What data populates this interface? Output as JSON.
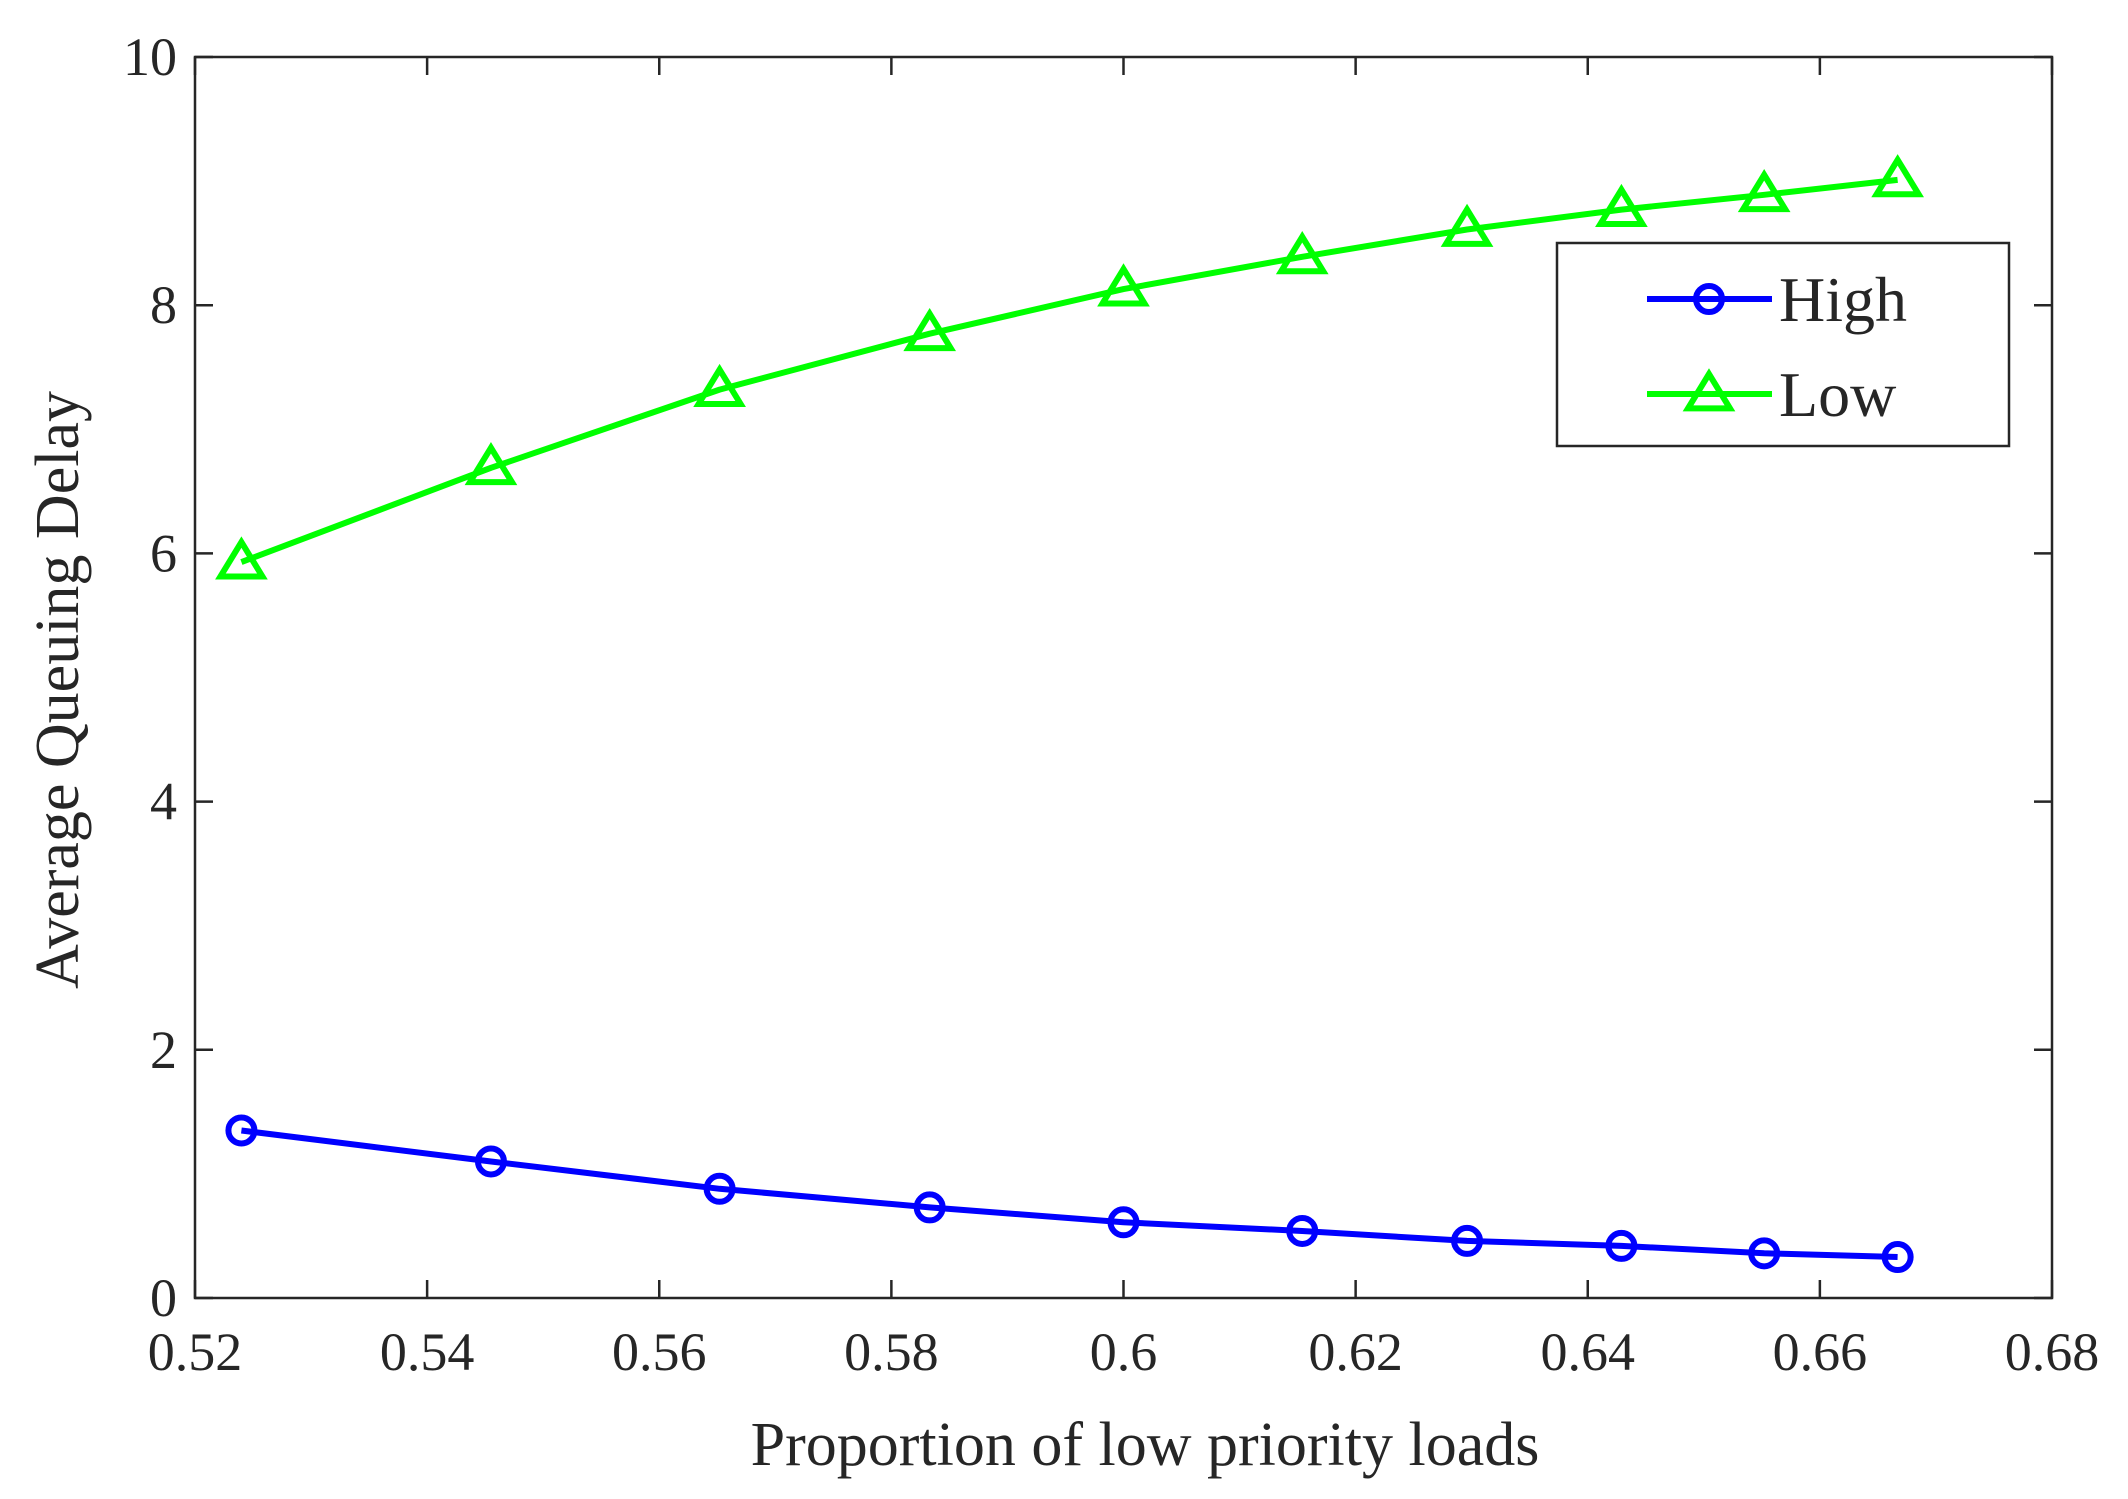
{
  "chart_data": {
    "type": "line",
    "title": "",
    "xlabel": "Proportion of low priority loads",
    "ylabel": "Average Queuing Delay",
    "xlim": [
      0.52,
      0.68
    ],
    "ylim": [
      0,
      10
    ],
    "xticks": [
      0.52,
      0.54,
      0.56,
      0.58,
      0.6,
      0.62,
      0.64,
      0.66,
      0.68
    ],
    "xtick_labels": [
      "0.52",
      "0.54",
      "0.56",
      "0.58",
      "0.6",
      "0.62",
      "0.64",
      "0.66",
      "0.68"
    ],
    "yticks": [
      0,
      2,
      4,
      6,
      8,
      10
    ],
    "ytick_labels": [
      "0",
      "2",
      "4",
      "6",
      "8",
      "10"
    ],
    "grid": false,
    "legend_position": "top-right",
    "x": [
      0.524,
      0.5455,
      0.5652,
      0.5833,
      0.6,
      0.6154,
      0.6296,
      0.6429,
      0.6552,
      0.6667
    ],
    "series": [
      {
        "name": "High",
        "color": "#0000ff",
        "marker": "circle",
        "values": [
          1.35,
          1.1,
          0.88,
          0.73,
          0.61,
          0.54,
          0.46,
          0.42,
          0.36,
          0.33
        ]
      },
      {
        "name": "Low",
        "color": "#00ff00",
        "marker": "triangle",
        "values": [
          5.93,
          6.69,
          7.32,
          7.77,
          8.13,
          8.39,
          8.61,
          8.77,
          8.89,
          9.01
        ]
      }
    ]
  }
}
